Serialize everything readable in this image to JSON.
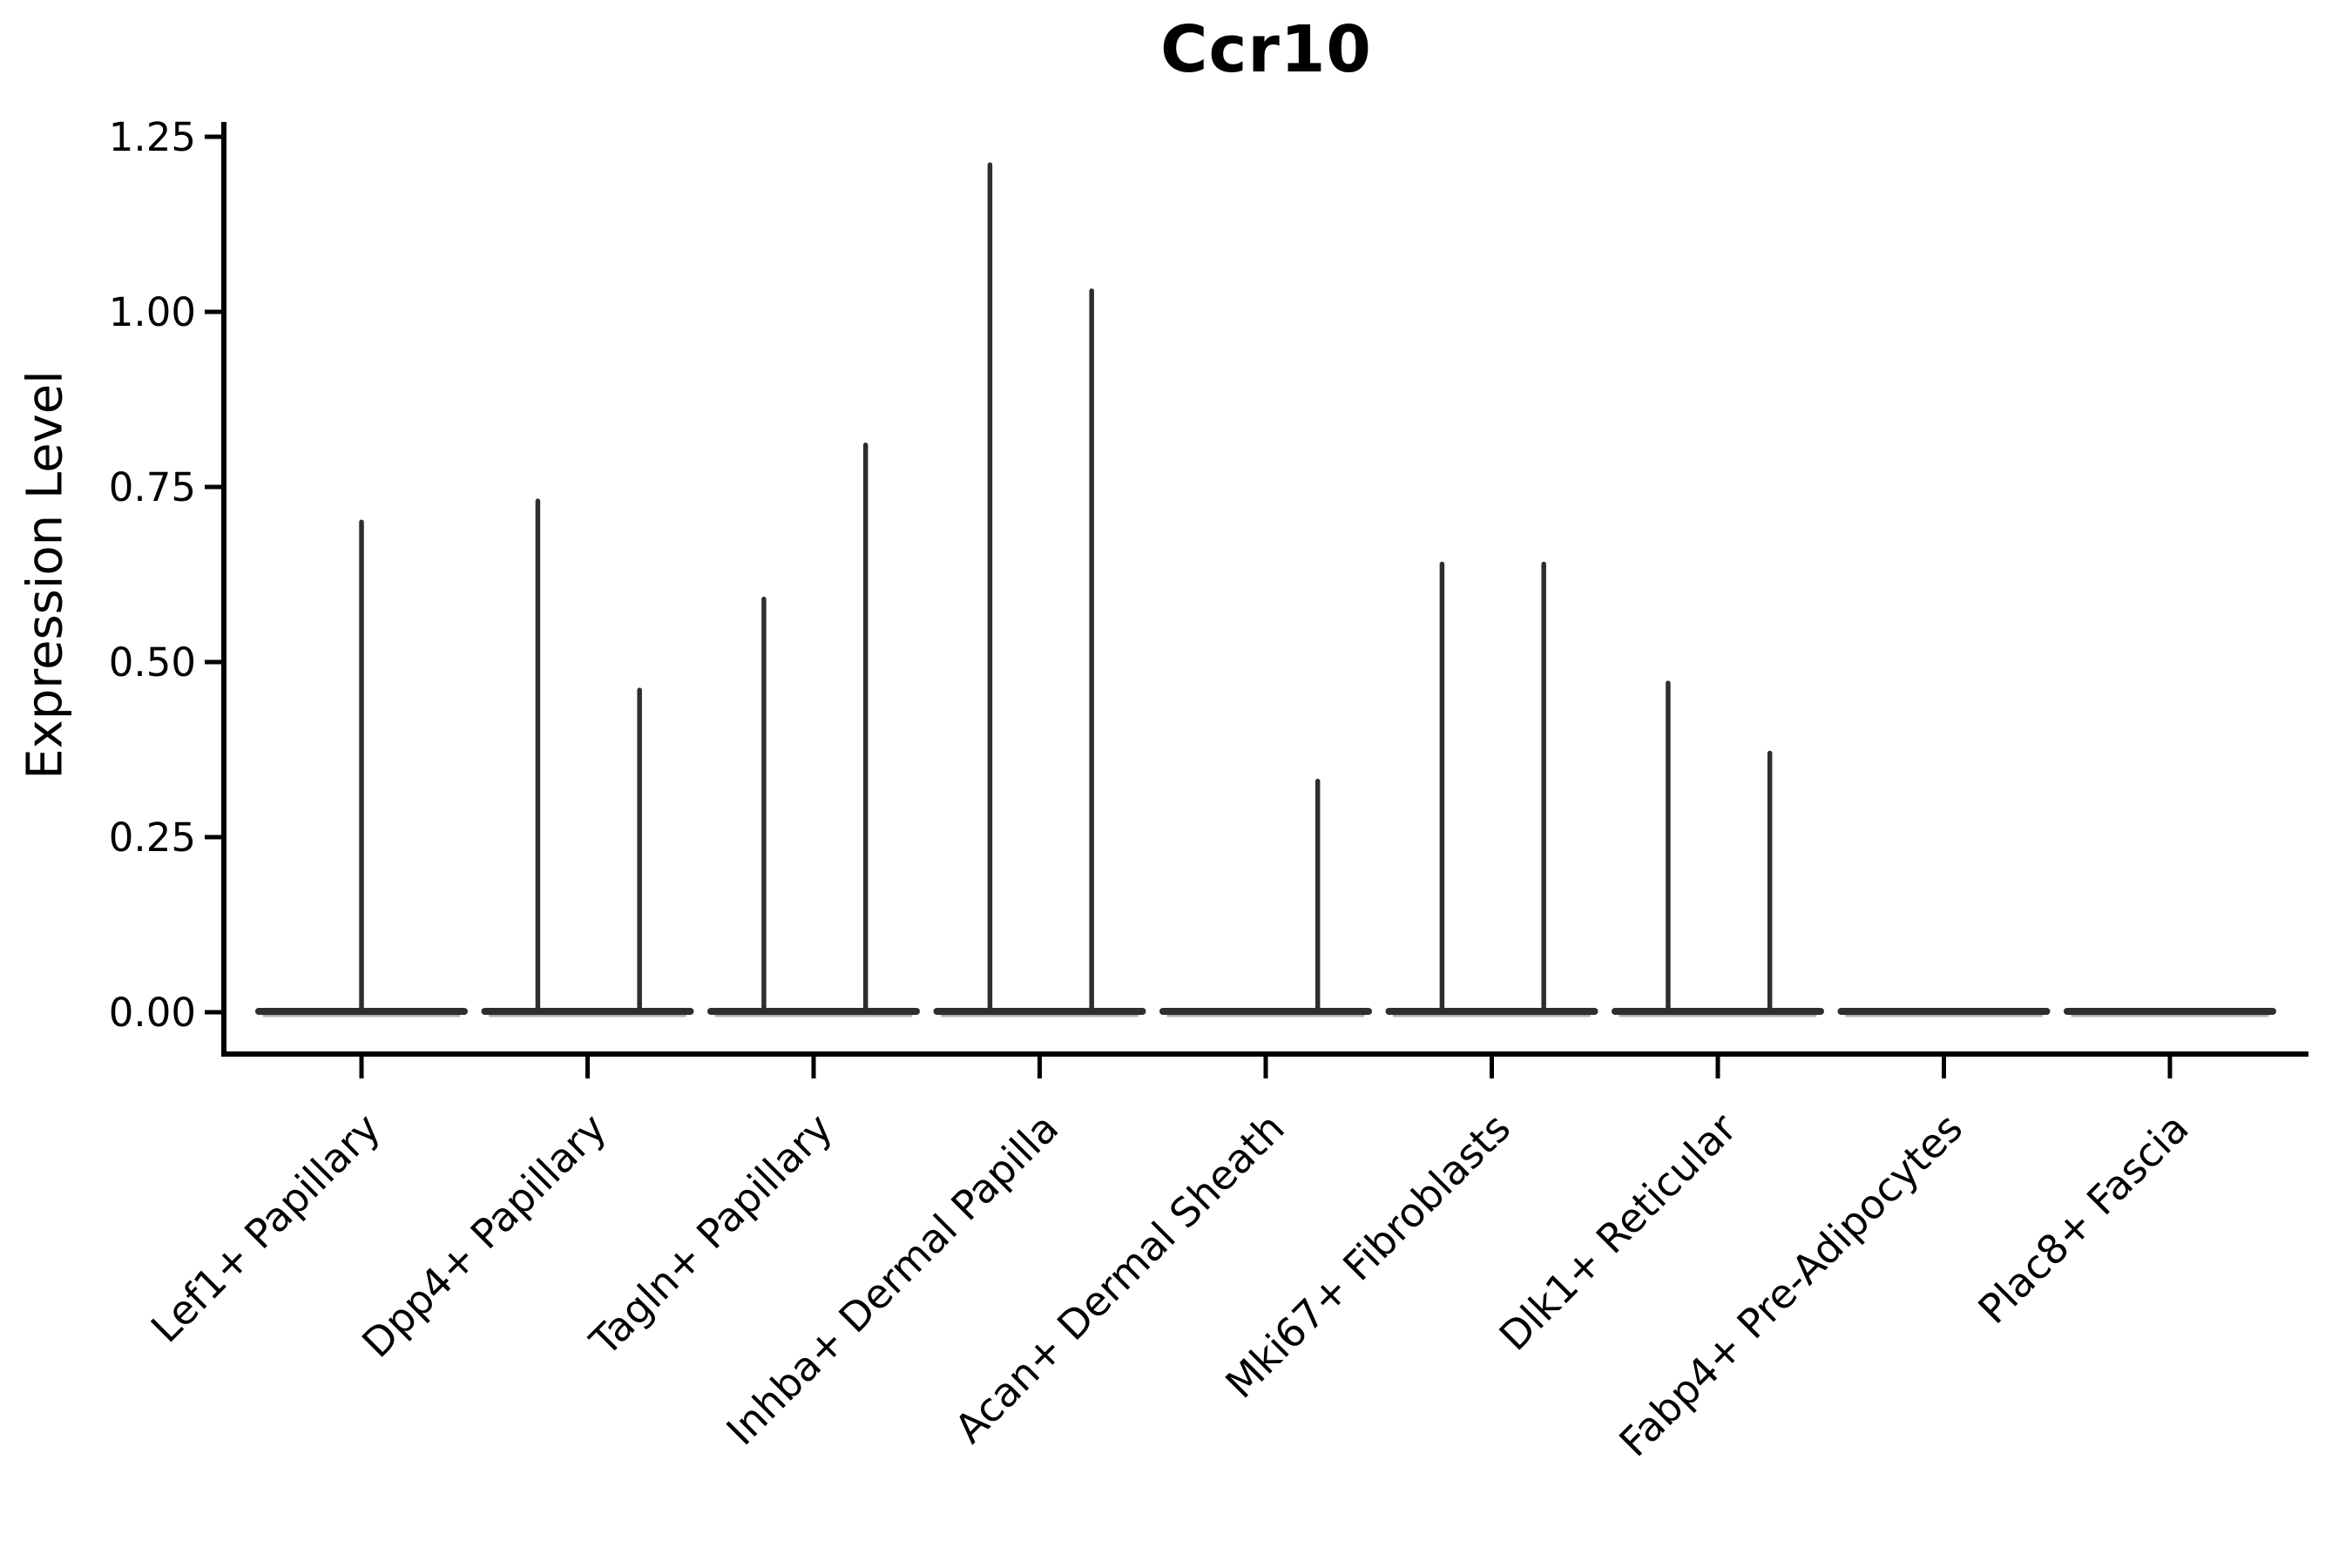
{
  "chart_data": {
    "type": "violin",
    "title": "Ccr10",
    "ylabel": "Expression Level",
    "xlabel": "",
    "ylim": [
      -0.06,
      1.27
    ],
    "y_ticks": [
      "0.00",
      "0.25",
      "0.50",
      "0.75",
      "1.00",
      "1.25"
    ],
    "grid": false,
    "legend": null,
    "categories": [
      "Lef1+ Papillary",
      "Dpp4+ Papillary",
      "Tagln+ Papillary",
      "Inhba+ Dermal Papilla",
      "Acan+ Dermal Sheath",
      "Mki67+ Fibroblasts",
      "Dlk1+ Reticular",
      "Fabp4+ Pre-Adipocytes",
      "Plac8+ Fascia"
    ],
    "violins": [
      {
        "category": "Lef1+ Papillary",
        "spikes": [
          {
            "offset": 0.0,
            "max": 0.7
          }
        ]
      },
      {
        "category": "Dpp4+ Papillary",
        "spikes": [
          {
            "offset": -0.22,
            "max": 0.73
          },
          {
            "offset": 0.23,
            "max": 0.46
          }
        ]
      },
      {
        "category": "Tagln+ Papillary",
        "spikes": [
          {
            "offset": -0.22,
            "max": 0.59
          },
          {
            "offset": 0.23,
            "max": 0.81
          }
        ]
      },
      {
        "category": "Inhba+ Dermal Papilla",
        "spikes": [
          {
            "offset": -0.22,
            "max": 1.21
          },
          {
            "offset": 0.23,
            "max": 1.03
          }
        ]
      },
      {
        "category": "Acan+ Dermal Sheath",
        "spikes": [
          {
            "offset": 0.23,
            "max": 0.33
          }
        ]
      },
      {
        "category": "Mki67+ Fibroblasts",
        "spikes": [
          {
            "offset": -0.22,
            "max": 0.64
          },
          {
            "offset": 0.23,
            "max": 0.64
          }
        ]
      },
      {
        "category": "Dlk1+ Reticular",
        "spikes": [
          {
            "offset": -0.22,
            "max": 0.47
          },
          {
            "offset": 0.23,
            "max": 0.37
          }
        ]
      },
      {
        "category": "Fabp4+ Pre-Adipocytes",
        "spikes": []
      },
      {
        "category": "Plac8+ Fascia",
        "spikes": []
      }
    ],
    "baseline_value": 0.0,
    "colors": {
      "violin": "#2e2e2e",
      "violin_edge_light": "#b0b0b0",
      "axis": "#000000",
      "text": "#000000",
      "background": "#ffffff"
    }
  }
}
